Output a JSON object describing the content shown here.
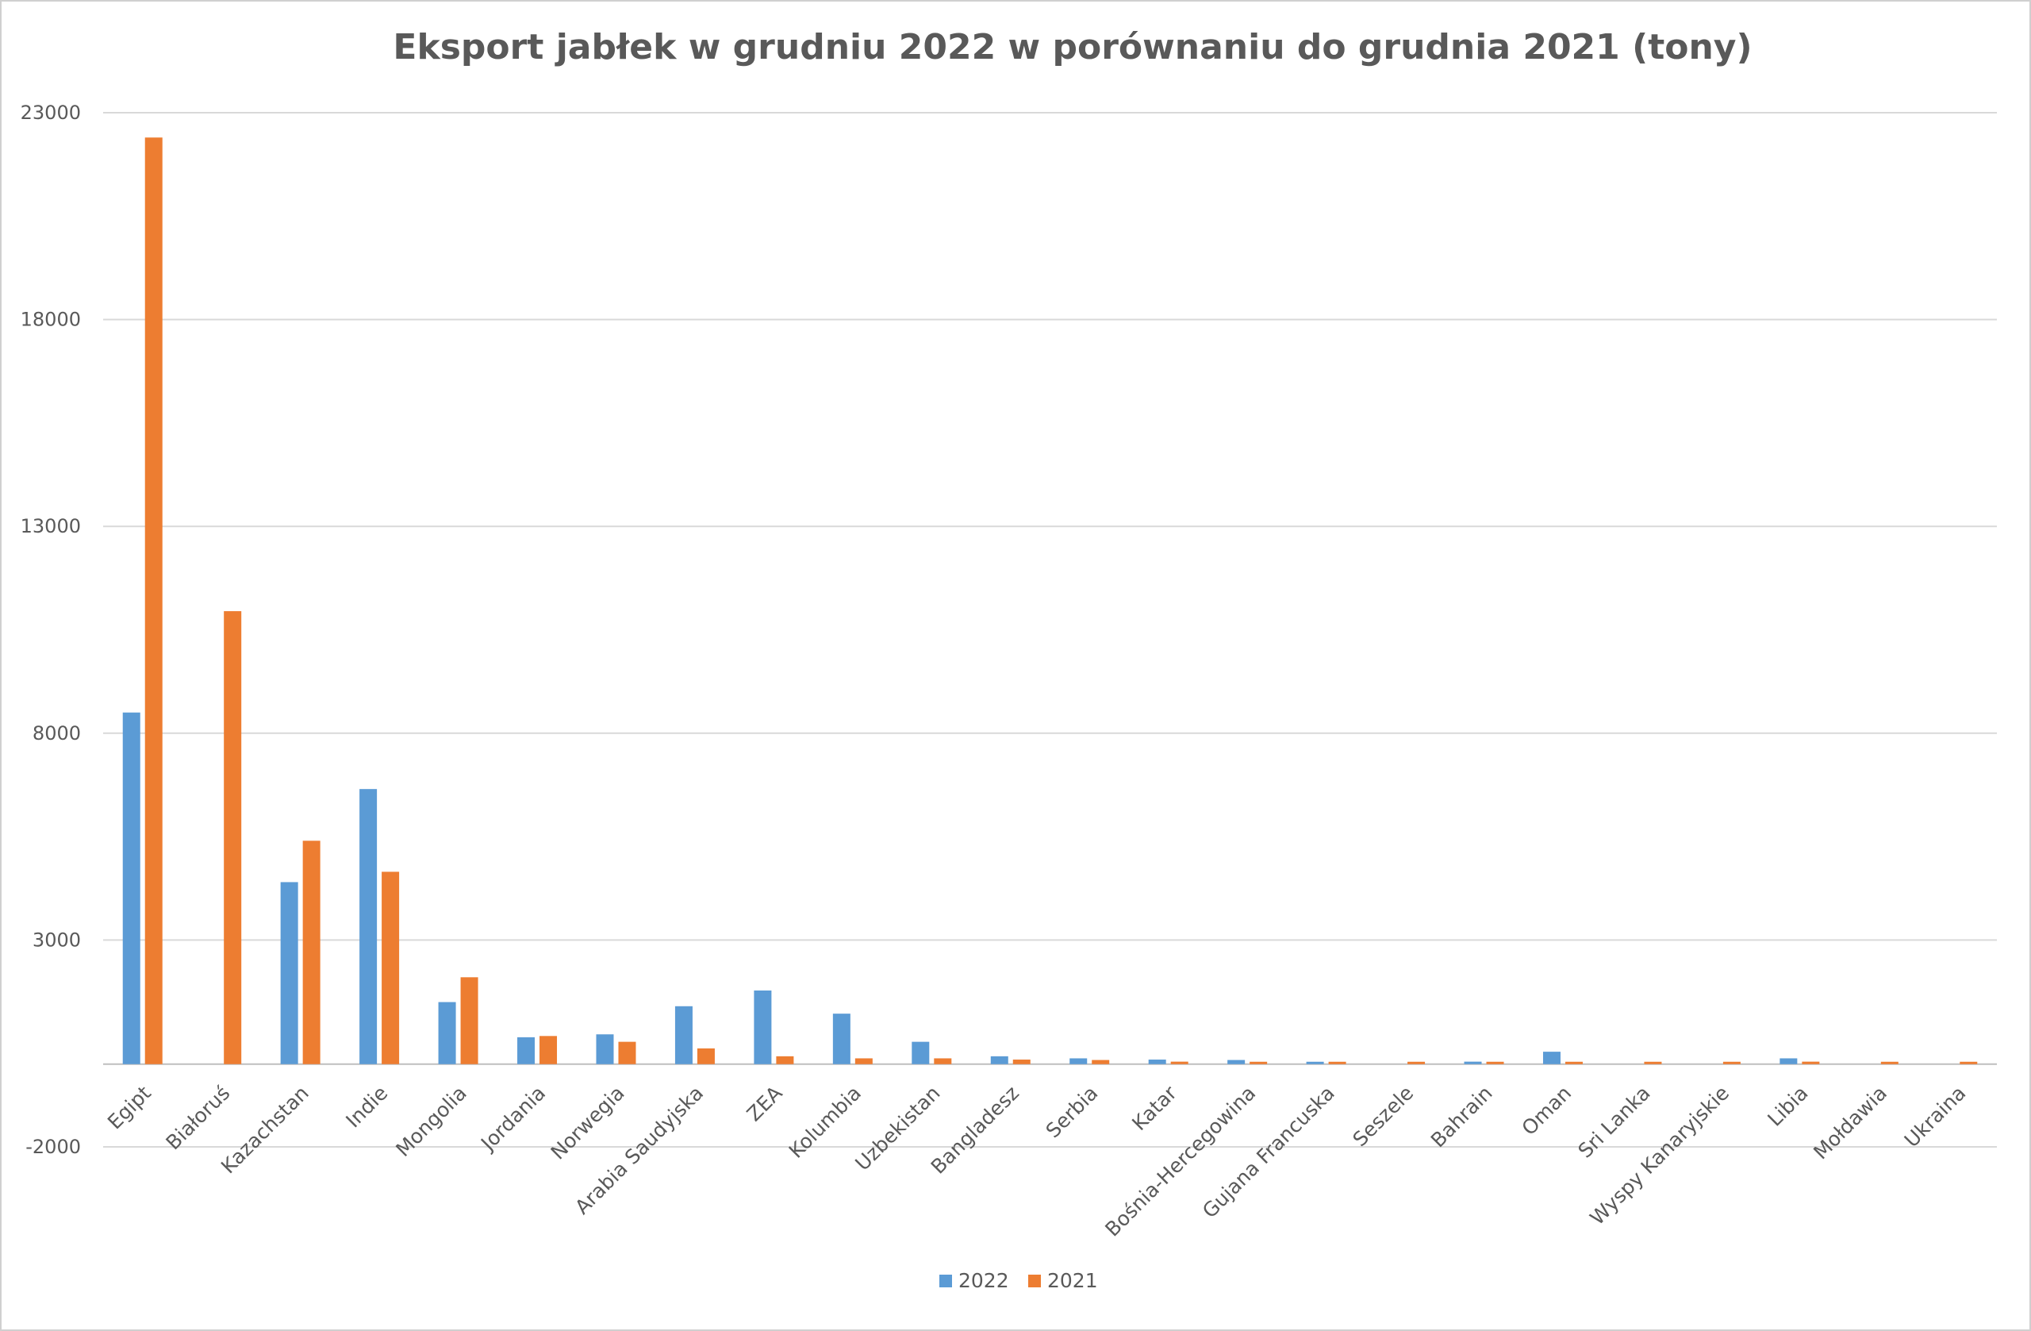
{
  "chart_data": {
    "type": "bar",
    "title": "Eksport jabłek w grudniu 2022 w porównaniu do grudnia 2021 (tony)",
    "xlabel": "",
    "ylabel": "",
    "ylim": [
      -2000,
      23000
    ],
    "yticks": [
      -2000,
      3000,
      8000,
      13000,
      18000,
      23000
    ],
    "grid": true,
    "legend_position": "bottom",
    "categories": [
      "Egipt",
      "Białoruś",
      "Kazachstan",
      "Indie",
      "Mongolia",
      "Jordania",
      "Norwegia",
      "Arabia Saudyjska",
      "ZEA",
      "Kolumbia",
      "Uzbekistan",
      "Bangladesz",
      "Serbia",
      "Katar",
      "Bośnia-Hercegowina",
      "Gujana Francuska",
      "Seszele",
      "Bahrain",
      "Oman",
      "Sri Lanka",
      "Wyspy Kanaryjskie",
      "Libia",
      "Mołdawia",
      "Ukraina"
    ],
    "series": [
      {
        "name": "2022",
        "color": "#5B9BD5",
        "values": [
          8500,
          0,
          4400,
          6650,
          1500,
          650,
          720,
          1400,
          1780,
          1220,
          540,
          190,
          140,
          110,
          100,
          50,
          0,
          60,
          300,
          0,
          0,
          140,
          0,
          0
        ]
      },
      {
        "name": "2021",
        "color": "#ED7D31",
        "values": [
          22400,
          10950,
          5400,
          4650,
          2100,
          680,
          540,
          380,
          190,
          140,
          140,
          110,
          100,
          60,
          40,
          40,
          40,
          40,
          40,
          40,
          40,
          60,
          40,
          40
        ]
      }
    ]
  }
}
